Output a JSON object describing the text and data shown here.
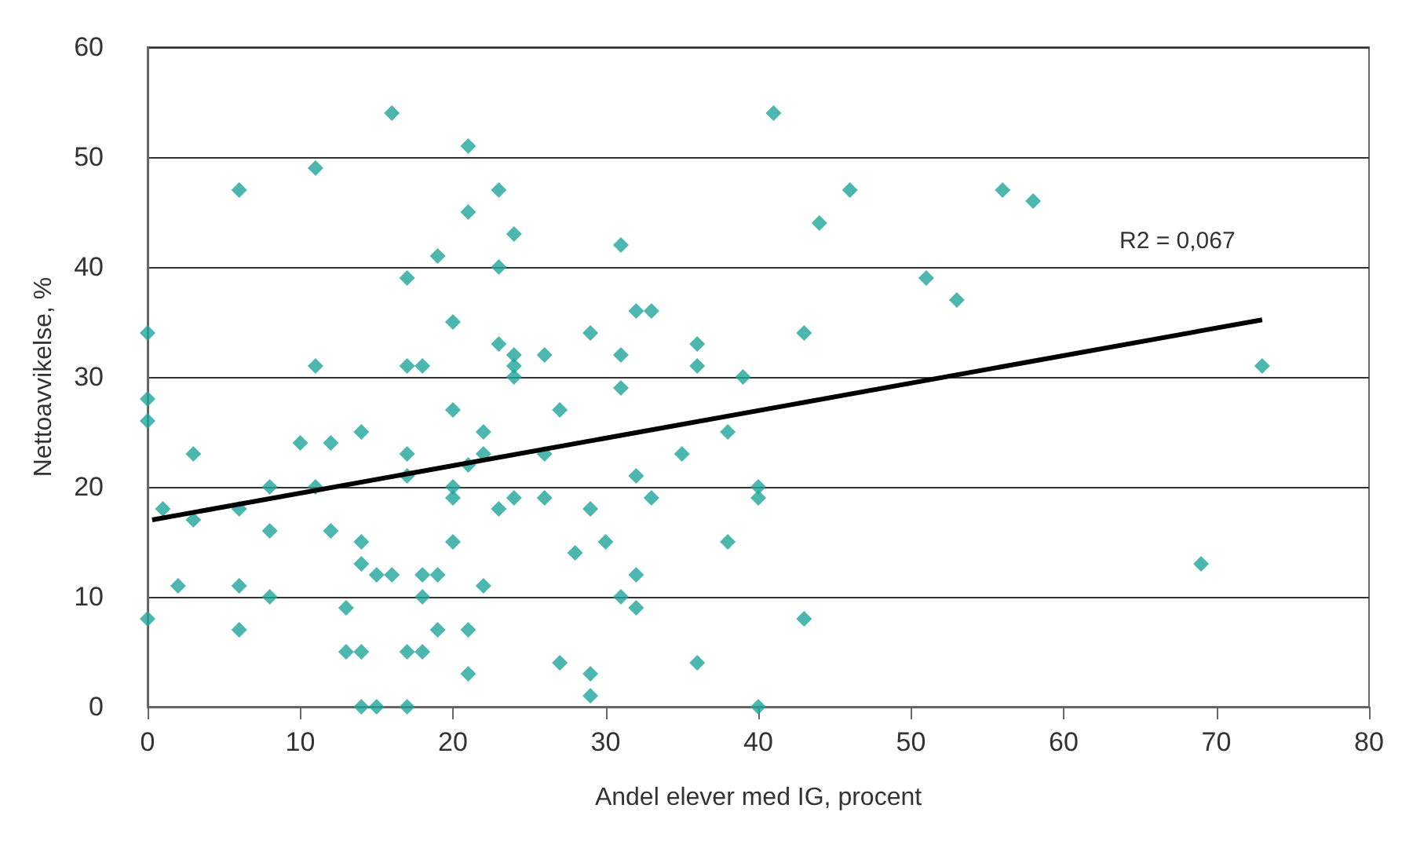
{
  "chart_data": {
    "type": "scatter",
    "xlabel": "Andel elever med IG, procent",
    "ylabel": "Nettoavvikelse, %",
    "xlim": [
      0,
      80
    ],
    "xticks": [
      0,
      10,
      20,
      30,
      40,
      50,
      60,
      70,
      80
    ],
    "ylim": [
      0,
      60
    ],
    "yticks": [
      0,
      10,
      20,
      30,
      40,
      50,
      60
    ],
    "grid": "y",
    "marker": "diamond",
    "annotations": [
      "R2 = 0,067"
    ],
    "series": [
      {
        "color": "#1fa59a",
        "x": [
          0,
          0,
          0,
          0,
          1,
          2,
          3,
          3,
          6,
          6,
          6,
          6,
          8,
          8,
          8,
          10,
          11,
          11,
          11,
          12,
          12,
          13,
          13,
          14,
          14,
          14,
          14,
          14,
          15,
          15,
          16,
          16,
          17,
          17,
          17,
          17,
          17,
          17,
          18,
          18,
          18,
          18,
          19,
          19,
          19,
          20,
          20,
          20,
          20,
          20,
          21,
          21,
          21,
          21,
          21,
          22,
          22,
          22,
          23,
          23,
          23,
          23,
          24,
          24,
          24,
          24,
          24,
          26,
          26,
          26,
          27,
          27,
          28,
          29,
          29,
          29,
          29,
          30,
          31,
          31,
          31,
          31,
          32,
          32,
          32,
          32,
          33,
          33,
          35,
          36,
          36,
          36,
          38,
          38,
          39,
          40,
          40,
          40,
          41,
          43,
          43,
          44,
          46,
          51,
          53,
          56,
          58,
          69,
          73
        ],
        "values": [
          34,
          28,
          26,
          8,
          18,
          11,
          23,
          17,
          47,
          18,
          11,
          7,
          20,
          16,
          10,
          24,
          49,
          31,
          20,
          24,
          16,
          9,
          5,
          25,
          15,
          13,
          5,
          0,
          0,
          12,
          54,
          12,
          39,
          31,
          23,
          21,
          5,
          0,
          31,
          12,
          10,
          5,
          41,
          12,
          7,
          35,
          27,
          20,
          19,
          15,
          51,
          45,
          22,
          7,
          3,
          25,
          23,
          11,
          47,
          40,
          33,
          18,
          43,
          32,
          31,
          30,
          19,
          32,
          23,
          19,
          27,
          4,
          14,
          34,
          18,
          3,
          1,
          15,
          42,
          32,
          29,
          10,
          36,
          21,
          12,
          9,
          36,
          19,
          23,
          33,
          31,
          4,
          25,
          15,
          30,
          20,
          19,
          0,
          54,
          34,
          8,
          44,
          47,
          39,
          37,
          47,
          46,
          13,
          31
        ]
      },
      {
        "type": "line",
        "color": "#000000",
        "marker": "none",
        "line_style": "solid",
        "x": [
          0.3,
          73
        ],
        "values": [
          17,
          35.2
        ]
      }
    ]
  }
}
